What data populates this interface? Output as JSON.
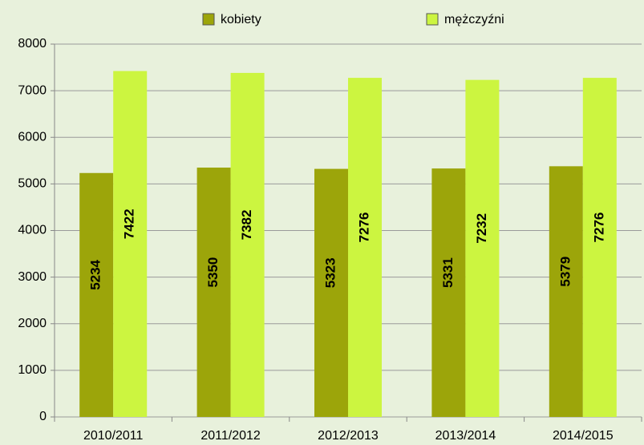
{
  "chart_data": {
    "type": "bar",
    "categories": [
      "2010/2011",
      "2011/2012",
      "2012/2013",
      "2013/2014",
      "2014/2015"
    ],
    "series": [
      {
        "name": "kobiety",
        "color": "#9ca50a",
        "values": [
          5234,
          5350,
          5323,
          5331,
          5379
        ]
      },
      {
        "name": "mężczyźni",
        "color": "#ccf540",
        "values": [
          7422,
          7382,
          7276,
          7232,
          7276
        ]
      }
    ],
    "ylim": [
      0,
      8000
    ],
    "yticks": [
      0,
      1000,
      2000,
      3000,
      4000,
      5000,
      6000,
      7000,
      8000
    ],
    "grid": true,
    "legend": "top"
  }
}
